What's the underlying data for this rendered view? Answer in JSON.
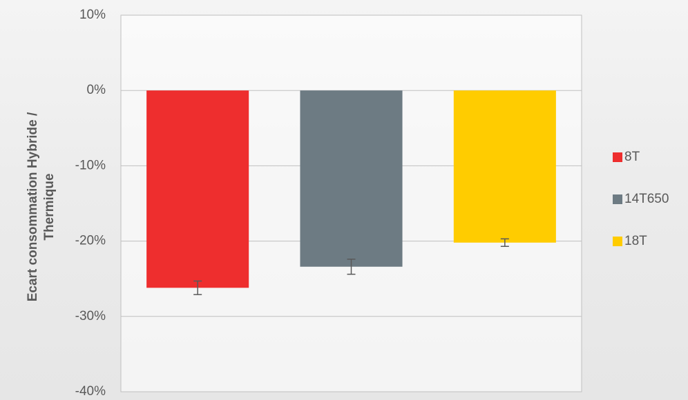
{
  "chart_data": {
    "type": "bar",
    "ylabel": "Ecart consommation Hybride / Thermique",
    "series": [
      {
        "name": "8T",
        "color": "#ee2e2e",
        "values": [
          -26.2
        ],
        "errors": [
          0.9
        ]
      },
      {
        "name": "14T650",
        "color": "#6d7b83",
        "values": [
          -23.4
        ],
        "errors": [
          1.0
        ]
      },
      {
        "name": "18T",
        "color": "#ffcc00",
        "values": [
          -20.2
        ],
        "errors": [
          0.5
        ]
      }
    ],
    "ylim": [
      -40,
      10
    ],
    "yticks": [
      {
        "value": -40,
        "label": "-40%"
      },
      {
        "value": -30,
        "label": "-30%"
      },
      {
        "value": -20,
        "label": "-20%"
      },
      {
        "value": -10,
        "label": "-10%"
      },
      {
        "value": 0,
        "label": "0%"
      },
      {
        "value": 10,
        "label": "10%"
      }
    ],
    "grid": true,
    "legend": "right"
  }
}
